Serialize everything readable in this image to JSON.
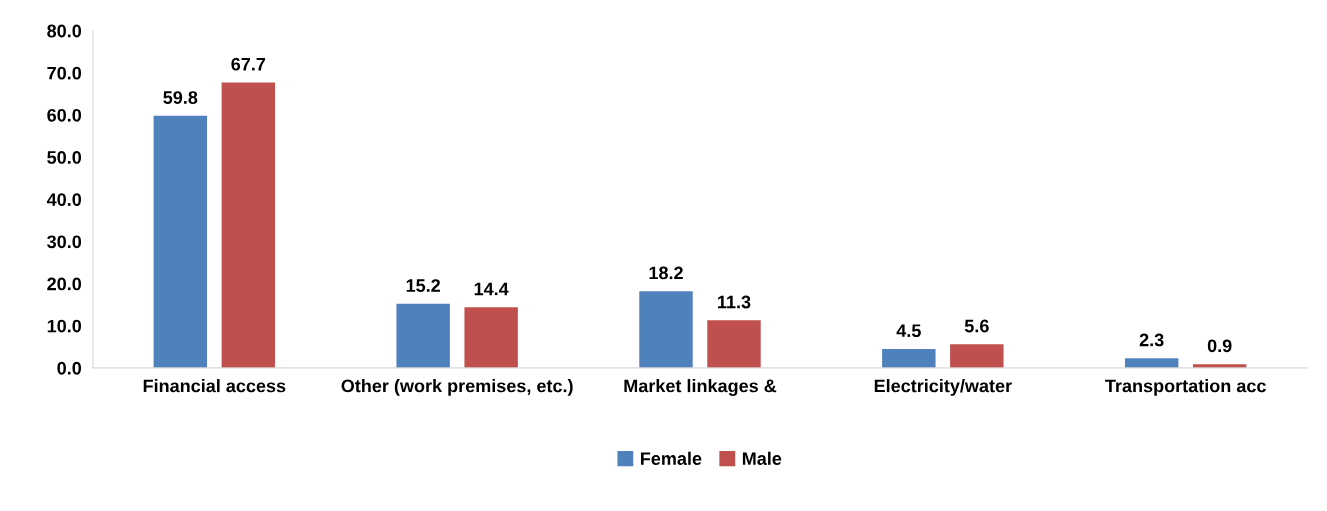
{
  "chart_data": {
    "type": "bar",
    "categories": [
      "Financial access",
      "Other (work premises, etc.)",
      "Market linkages &",
      "Electricity/water",
      "Transportation acc"
    ],
    "series": [
      {
        "name": "Female",
        "color": "#4f81bd",
        "values": [
          59.8,
          15.2,
          18.2,
          4.5,
          2.3
        ]
      },
      {
        "name": "Male",
        "color": "#c0504d",
        "values": [
          67.7,
          14.4,
          11.3,
          5.6,
          0.9
        ]
      }
    ],
    "ylim": [
      0,
      80
    ],
    "yticks": [
      {
        "value": 0,
        "label": "0.0"
      },
      {
        "value": 10,
        "label": "10.0"
      },
      {
        "value": 20,
        "label": "20.0"
      },
      {
        "value": 30,
        "label": "30.0"
      },
      {
        "value": 40,
        "label": "40.0"
      },
      {
        "value": 50,
        "label": "50.0"
      },
      {
        "value": 60,
        "label": "60.0"
      },
      {
        "value": 70,
        "label": "70.0"
      },
      {
        "value": 80,
        "label": "80.0"
      }
    ],
    "data_labels": true,
    "grid": false,
    "legend": "bottom"
  }
}
